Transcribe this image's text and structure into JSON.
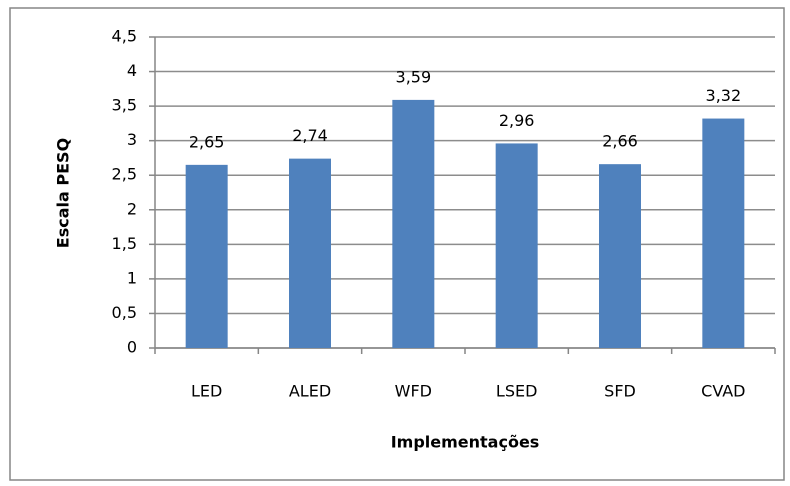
{
  "chart_data": {
    "type": "bar",
    "x_label": "Implementações",
    "y_label": "Escala PESQ",
    "categories": [
      "LED",
      "ALED",
      "WFD",
      "LSED",
      "SFD",
      "CVAD"
    ],
    "values": [
      2.65,
      2.74,
      3.59,
      2.96,
      2.66,
      3.32
    ],
    "value_labels": [
      "2,65",
      "2,74",
      "3,59",
      "2,96",
      "2,66",
      "3,32"
    ],
    "color": "#4f81bd",
    "ylim": [
      0,
      4.5
    ],
    "yticks": [
      0,
      {
        "value": 0.5,
        "label": "0,5"
      },
      1,
      {
        "value": 1.5,
        "label": "1,5"
      },
      2,
      {
        "value": 2.5,
        "label": "2,5"
      },
      3,
      {
        "value": 3.5,
        "label": "3,5"
      },
      4,
      {
        "value": 4.5,
        "label": "4,5"
      }
    ],
    "grid": true
  }
}
